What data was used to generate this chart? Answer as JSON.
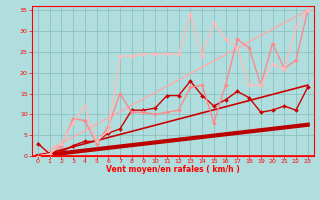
{
  "xlabel": "Vent moyen/en rafales ( km/h )",
  "xlim": [
    -0.5,
    23.5
  ],
  "ylim": [
    0,
    36
  ],
  "xticks": [
    0,
    1,
    2,
    3,
    4,
    5,
    6,
    7,
    8,
    9,
    10,
    11,
    12,
    13,
    14,
    15,
    16,
    17,
    18,
    19,
    20,
    21,
    22,
    23
  ],
  "yticks": [
    0,
    5,
    10,
    15,
    20,
    25,
    30,
    35
  ],
  "background_color": "#b0dede",
  "grid_color": "#88bbbb",
  "lines": [
    {
      "x": [
        0,
        23
      ],
      "y": [
        0,
        7.5
      ],
      "color": "#bb0000",
      "linewidth": 3.0,
      "marker": null,
      "zorder": 4
    },
    {
      "x": [
        0,
        23
      ],
      "y": [
        0,
        17
      ],
      "color": "#cc0000",
      "linewidth": 1.2,
      "marker": null,
      "zorder": 3
    },
    {
      "x": [
        0,
        23
      ],
      "y": [
        0,
        35
      ],
      "color": "#ffaaaa",
      "linewidth": 1.0,
      "marker": null,
      "zorder": 2
    },
    {
      "x": [
        0,
        1,
        2,
        3,
        4,
        5,
        6,
        7,
        8,
        9,
        10,
        11,
        12,
        13,
        14,
        15,
        16,
        17,
        18,
        19,
        20,
        21,
        22,
        23
      ],
      "y": [
        3,
        0.5,
        1,
        2.5,
        3.5,
        3.5,
        5.5,
        6.5,
        11,
        11,
        11.5,
        14.5,
        14.5,
        18,
        14.5,
        12,
        13.5,
        15.5,
        14,
        10.5,
        11,
        12,
        11,
        16.5
      ],
      "color": "#cc0000",
      "linewidth": 1.0,
      "marker": "D",
      "markersize": 2.0,
      "zorder": 5
    },
    {
      "x": [
        0,
        1,
        2,
        3,
        4,
        5,
        6,
        7,
        8,
        9,
        10,
        11,
        12,
        13,
        14,
        15,
        16,
        17,
        18,
        19,
        20,
        21,
        22,
        23
      ],
      "y": [
        0,
        0.5,
        2.5,
        9,
        8.5,
        3,
        7,
        15,
        10.5,
        10.5,
        10,
        10.5,
        11,
        16.5,
        17,
        8,
        17,
        28,
        26,
        17,
        27,
        21,
        23,
        35
      ],
      "color": "#ff8888",
      "linewidth": 1.0,
      "marker": "D",
      "markersize": 2.0,
      "zorder": 5
    },
    {
      "x": [
        0,
        1,
        2,
        3,
        4,
        5,
        6,
        7,
        8,
        9,
        10,
        11,
        12,
        13,
        14,
        15,
        16,
        17,
        18,
        19,
        20,
        21,
        22,
        23
      ],
      "y": [
        0,
        0.5,
        3,
        8,
        12,
        3.5,
        6,
        24,
        24,
        24.5,
        24.5,
        24.5,
        24.5,
        34,
        24,
        32,
        28,
        26,
        17,
        17,
        22,
        21,
        31,
        35
      ],
      "color": "#ffbbbb",
      "linewidth": 1.0,
      "marker": "D",
      "markersize": 2.0,
      "zorder": 5
    }
  ]
}
